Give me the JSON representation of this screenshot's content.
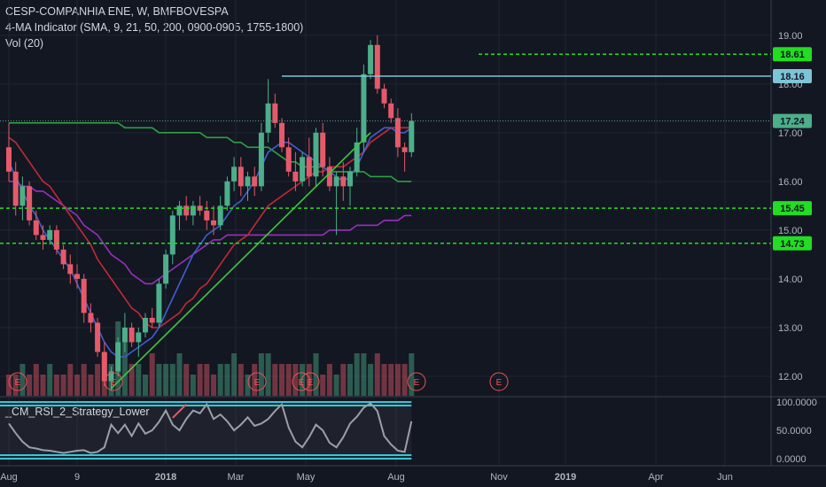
{
  "legend": {
    "title": "CESP-COMPANHIA ENE, W, BMFBOVESPA",
    "ma": "4-MA Indicator (SMA, 9, 21, 50, 200, 0900-0905, 1755-1800)",
    "vol": "Vol (20)"
  },
  "colors": {
    "background": "#131722",
    "up": "#4caf8a",
    "down": "#e55a6a",
    "ma9": "#3f5fcf",
    "ma21": "#c22b36",
    "ma50": "#9b2fbf",
    "ma200": "#2ea043",
    "trendline": "#3ec93e",
    "level": "#22dd22",
    "resistance": "#7ec4d8",
    "rsi_band": "#35c7d7",
    "event": "#ef5350"
  },
  "chart_data": {
    "type": "candlestick",
    "x_labels": [
      "Aug",
      "9",
      "2018",
      "Mar",
      "May",
      "Aug",
      "Nov",
      "2019",
      "Apr",
      "Jun"
    ],
    "y_ticks": [
      "19.00",
      "18.00",
      "17.00",
      "16.00",
      "15.00",
      "14.00",
      "13.00",
      "12.00"
    ],
    "ylim": [
      11.6,
      19.45
    ],
    "candles": [
      {
        "o": 16.7,
        "h": 17.2,
        "l": 16.0,
        "c": 16.2
      },
      {
        "o": 16.2,
        "h": 16.4,
        "l": 15.3,
        "c": 15.5
      },
      {
        "o": 15.5,
        "h": 16.1,
        "l": 15.2,
        "c": 15.9
      },
      {
        "o": 15.9,
        "h": 16.0,
        "l": 15.1,
        "c": 15.2
      },
      {
        "o": 15.2,
        "h": 15.4,
        "l": 14.8,
        "c": 14.9
      },
      {
        "o": 14.9,
        "h": 15.1,
        "l": 14.6,
        "c": 14.8
      },
      {
        "o": 14.8,
        "h": 15.1,
        "l": 14.7,
        "c": 15.0
      },
      {
        "o": 15.0,
        "h": 15.1,
        "l": 14.5,
        "c": 14.6
      },
      {
        "o": 14.6,
        "h": 14.7,
        "l": 14.2,
        "c": 14.3
      },
      {
        "o": 14.3,
        "h": 14.5,
        "l": 13.9,
        "c": 14.1
      },
      {
        "o": 14.1,
        "h": 14.3,
        "l": 13.8,
        "c": 14.0
      },
      {
        "o": 14.0,
        "h": 14.1,
        "l": 13.1,
        "c": 13.3
      },
      {
        "o": 13.3,
        "h": 13.5,
        "l": 12.9,
        "c": 13.1
      },
      {
        "o": 13.1,
        "h": 13.2,
        "l": 12.4,
        "c": 12.5
      },
      {
        "o": 12.5,
        "h": 12.7,
        "l": 11.8,
        "c": 11.9
      },
      {
        "o": 11.9,
        "h": 12.2,
        "l": 11.7,
        "c": 12.1
      },
      {
        "o": 12.1,
        "h": 12.8,
        "l": 12.0,
        "c": 12.7
      },
      {
        "o": 12.7,
        "h": 13.3,
        "l": 12.5,
        "c": 13.0
      },
      {
        "o": 13.0,
        "h": 13.1,
        "l": 12.6,
        "c": 12.7
      },
      {
        "o": 12.7,
        "h": 13.0,
        "l": 12.4,
        "c": 12.9
      },
      {
        "o": 12.9,
        "h": 13.3,
        "l": 12.8,
        "c": 13.2
      },
      {
        "o": 13.2,
        "h": 13.4,
        "l": 13.0,
        "c": 13.1
      },
      {
        "o": 13.1,
        "h": 14.0,
        "l": 13.0,
        "c": 13.9
      },
      {
        "o": 13.9,
        "h": 14.6,
        "l": 13.8,
        "c": 14.5
      },
      {
        "o": 14.5,
        "h": 15.4,
        "l": 14.3,
        "c": 15.3
      },
      {
        "o": 15.3,
        "h": 15.6,
        "l": 15.0,
        "c": 15.5
      },
      {
        "o": 15.5,
        "h": 15.7,
        "l": 15.2,
        "c": 15.3
      },
      {
        "o": 15.3,
        "h": 15.6,
        "l": 15.1,
        "c": 15.5
      },
      {
        "o": 15.5,
        "h": 15.7,
        "l": 15.3,
        "c": 15.4
      },
      {
        "o": 15.4,
        "h": 15.6,
        "l": 15.0,
        "c": 15.2
      },
      {
        "o": 15.2,
        "h": 15.5,
        "l": 14.9,
        "c": 15.1
      },
      {
        "o": 15.1,
        "h": 15.7,
        "l": 15.0,
        "c": 15.5
      },
      {
        "o": 15.5,
        "h": 16.1,
        "l": 15.4,
        "c": 16.0
      },
      {
        "o": 16.0,
        "h": 16.5,
        "l": 15.8,
        "c": 16.3
      },
      {
        "o": 16.3,
        "h": 16.5,
        "l": 15.7,
        "c": 15.9
      },
      {
        "o": 15.9,
        "h": 16.2,
        "l": 15.6,
        "c": 16.1
      },
      {
        "o": 16.1,
        "h": 16.3,
        "l": 15.7,
        "c": 15.9
      },
      {
        "o": 15.9,
        "h": 17.2,
        "l": 15.8,
        "c": 17.0
      },
      {
        "o": 17.0,
        "h": 18.1,
        "l": 16.8,
        "c": 17.6
      },
      {
        "o": 17.6,
        "h": 17.8,
        "l": 17.1,
        "c": 17.2
      },
      {
        "o": 17.2,
        "h": 17.3,
        "l": 16.6,
        "c": 16.7
      },
      {
        "o": 16.7,
        "h": 16.9,
        "l": 16.1,
        "c": 16.2
      },
      {
        "o": 16.2,
        "h": 16.6,
        "l": 15.8,
        "c": 16.0
      },
      {
        "o": 16.0,
        "h": 16.6,
        "l": 15.9,
        "c": 16.5
      },
      {
        "o": 16.5,
        "h": 16.9,
        "l": 15.9,
        "c": 16.1
      },
      {
        "o": 16.1,
        "h": 17.1,
        "l": 15.9,
        "c": 17.0
      },
      {
        "o": 17.0,
        "h": 17.2,
        "l": 16.1,
        "c": 16.3
      },
      {
        "o": 16.3,
        "h": 16.5,
        "l": 15.8,
        "c": 15.9
      },
      {
        "o": 15.9,
        "h": 16.2,
        "l": 14.9,
        "c": 16.1
      },
      {
        "o": 16.1,
        "h": 16.4,
        "l": 15.6,
        "c": 15.9
      },
      {
        "o": 15.9,
        "h": 16.3,
        "l": 15.5,
        "c": 16.2
      },
      {
        "o": 16.2,
        "h": 17.1,
        "l": 16.1,
        "c": 16.8
      },
      {
        "o": 16.8,
        "h": 18.4,
        "l": 16.6,
        "c": 18.2
      },
      {
        "o": 18.2,
        "h": 18.9,
        "l": 18.1,
        "c": 18.8
      },
      {
        "o": 18.8,
        "h": 19.0,
        "l": 17.8,
        "c": 17.9
      },
      {
        "o": 17.9,
        "h": 18.0,
        "l": 17.5,
        "c": 17.6
      },
      {
        "o": 17.6,
        "h": 17.7,
        "l": 17.2,
        "c": 17.3
      },
      {
        "o": 17.3,
        "h": 17.5,
        "l": 16.5,
        "c": 16.7
      },
      {
        "o": 16.7,
        "h": 16.8,
        "l": 16.2,
        "c": 16.6
      },
      {
        "o": 16.6,
        "h": 17.4,
        "l": 16.5,
        "c": 17.24
      }
    ],
    "volume": [
      2,
      2,
      3,
      2,
      3,
      2,
      3,
      2,
      2,
      3,
      2,
      3,
      2,
      3,
      4,
      3,
      7,
      6,
      3,
      3,
      2,
      4,
      3,
      3,
      3,
      4,
      3,
      2,
      3,
      3,
      2,
      3,
      3,
      4,
      3,
      2,
      3,
      4,
      4,
      3,
      3,
      3,
      3,
      3,
      3,
      4,
      2,
      3,
      2,
      3,
      3,
      4,
      4,
      3,
      4,
      3,
      3,
      3,
      3,
      4
    ],
    "ma9": [
      16.4,
      16.1,
      15.8,
      15.5,
      15.3,
      15.0,
      14.8,
      14.6,
      14.4,
      14.2,
      13.9,
      13.6,
      13.3,
      13.0,
      12.7,
      12.5,
      12.4,
      12.4,
      12.5,
      12.6,
      12.7,
      12.8,
      13.0,
      13.3,
      13.6,
      13.9,
      14.2,
      14.5,
      14.7,
      14.9,
      15.0,
      15.1,
      15.3,
      15.5,
      15.6,
      15.8,
      16.0,
      16.3,
      16.6,
      16.7,
      16.8,
      16.8,
      16.7,
      16.6,
      16.5,
      16.4,
      16.3,
      16.2,
      16.1,
      16.0,
      16.1,
      16.3,
      16.6,
      16.9,
      17.0,
      17.1,
      17.1,
      17.0,
      17.0,
      17.1
    ],
    "ma21": [
      16.9,
      16.8,
      16.6,
      16.4,
      16.2,
      16.0,
      15.9,
      15.7,
      15.5,
      15.3,
      15.1,
      14.9,
      14.7,
      14.4,
      14.2,
      14.0,
      13.8,
      13.6,
      13.4,
      13.3,
      13.1,
      13.0,
      13.0,
      13.1,
      13.2,
      13.3,
      13.5,
      13.6,
      13.8,
      13.9,
      14.1,
      14.3,
      14.5,
      14.7,
      14.8,
      14.9,
      15.1,
      15.3,
      15.5,
      15.6,
      15.7,
      15.8,
      15.9,
      16.0,
      16.1,
      16.2,
      16.2,
      16.3,
      16.3,
      16.3,
      16.4,
      16.5,
      16.6,
      16.8,
      16.9,
      17.0,
      17.1,
      17.1,
      17.1,
      17.1
    ],
    "ma50": [
      16.0,
      16.0,
      15.9,
      15.9,
      15.8,
      15.8,
      15.7,
      15.6,
      15.5,
      15.4,
      15.3,
      15.1,
      15.0,
      14.9,
      14.7,
      14.5,
      14.4,
      14.3,
      14.1,
      14.0,
      13.9,
      13.9,
      14.0,
      14.1,
      14.2,
      14.3,
      14.4,
      14.5,
      14.6,
      14.7,
      14.8,
      14.8,
      14.9,
      14.9,
      14.9,
      14.9,
      14.9,
      14.9,
      14.9,
      14.9,
      14.9,
      14.9,
      14.9,
      14.9,
      14.9,
      14.9,
      14.9,
      15.0,
      15.0,
      15.0,
      15.0,
      15.1,
      15.1,
      15.1,
      15.1,
      15.2,
      15.2,
      15.2,
      15.3,
      15.3
    ],
    "ma200": [
      17.2,
      17.2,
      17.2,
      17.2,
      17.2,
      17.2,
      17.2,
      17.2,
      17.2,
      17.2,
      17.2,
      17.2,
      17.2,
      17.2,
      17.2,
      17.2,
      17.2,
      17.1,
      17.1,
      17.1,
      17.1,
      17.1,
      17.0,
      17.0,
      17.0,
      17.0,
      17.0,
      17.0,
      17.0,
      16.9,
      16.9,
      16.9,
      16.9,
      16.8,
      16.8,
      16.7,
      16.7,
      16.7,
      16.7,
      16.6,
      16.5,
      16.4,
      16.4,
      16.3,
      16.3,
      16.3,
      16.3,
      16.2,
      16.2,
      16.2,
      16.2,
      16.2,
      16.2,
      16.1,
      16.1,
      16.1,
      16.1,
      16.0,
      16.0,
      16.0
    ],
    "rsi": [
      62,
      45,
      30,
      20,
      18,
      15,
      14,
      12,
      10,
      12,
      14,
      15,
      10,
      12,
      20,
      60,
      45,
      60,
      40,
      62,
      44,
      50,
      65,
      85,
      60,
      50,
      70,
      85,
      80,
      96,
      70,
      78,
      66,
      50,
      60,
      73,
      58,
      62,
      70,
      84,
      96,
      55,
      30,
      20,
      38,
      60,
      50,
      28,
      20,
      38,
      62,
      74,
      90,
      98,
      84,
      40,
      25,
      14,
      12,
      66
    ],
    "levels": [
      18.61,
      18.16,
      17.24,
      15.45,
      14.73
    ],
    "rsi_ticks": [
      "100.0000",
      "50.0000",
      "0.0000"
    ],
    "events": [
      "E",
      "E",
      "E",
      "E",
      "E",
      "E",
      "E"
    ],
    "rsi_title": "_CM_RSI_2_Strategy_Lower"
  }
}
